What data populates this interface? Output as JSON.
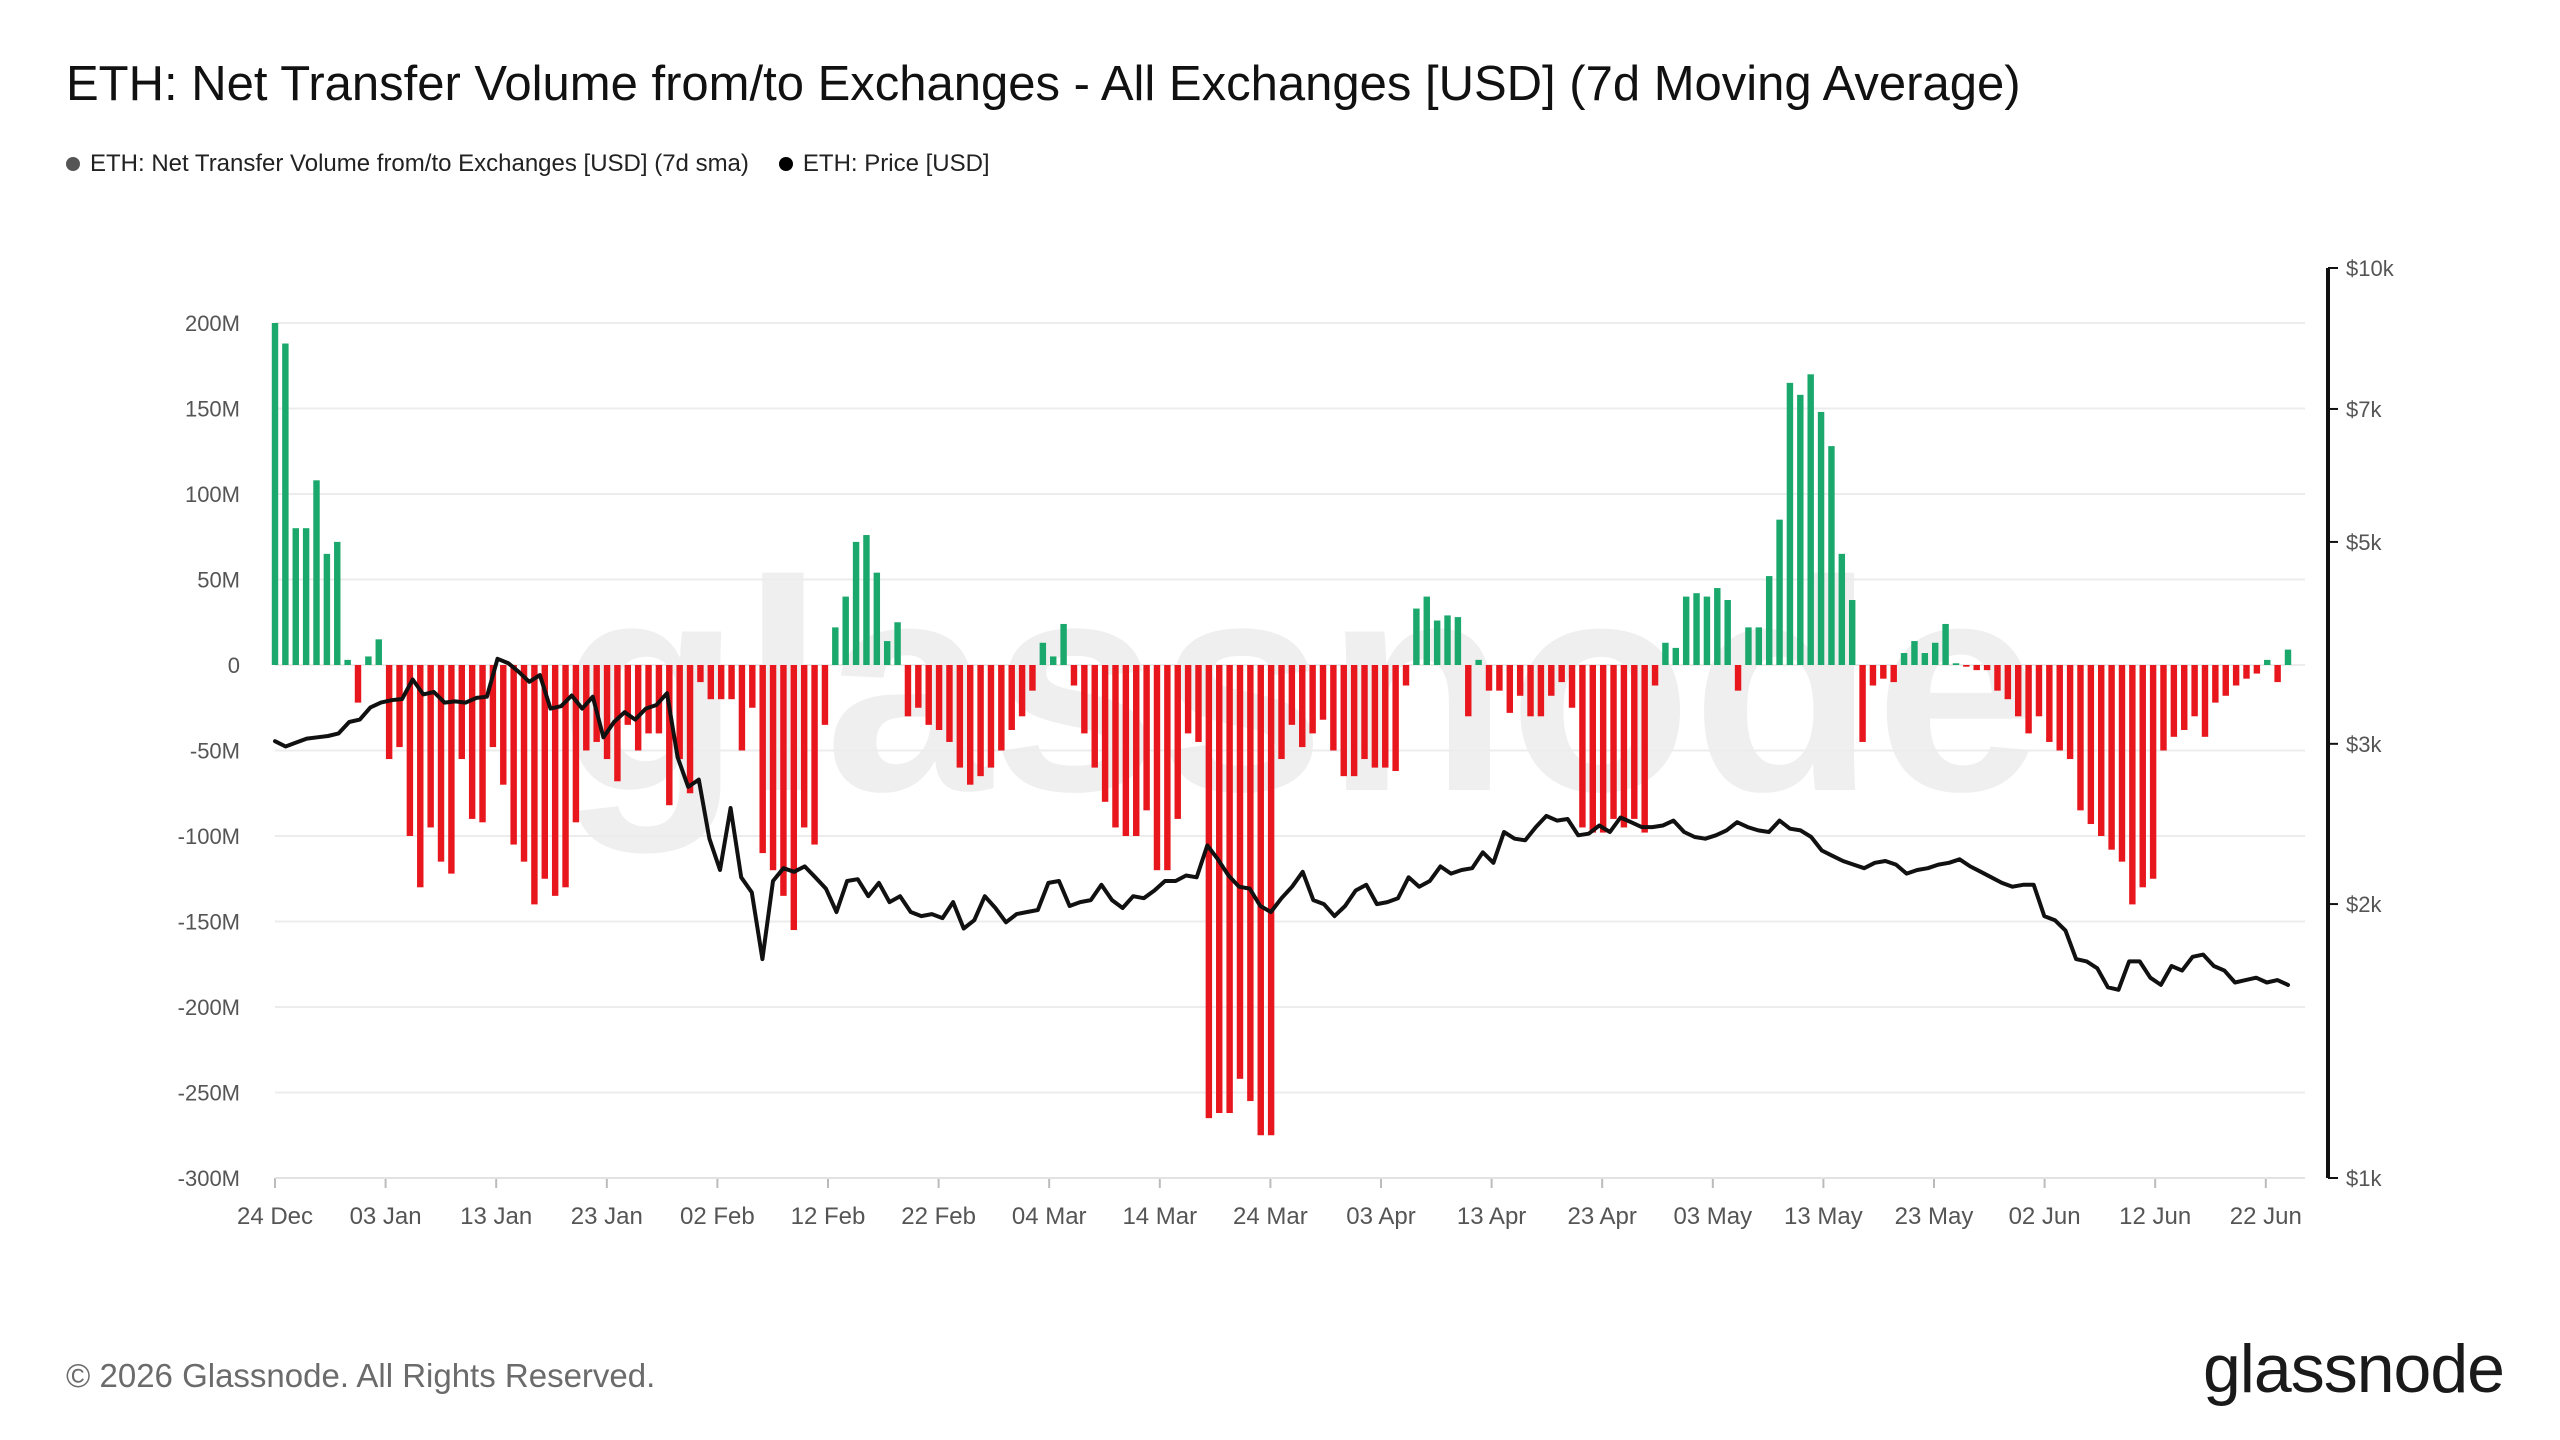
{
  "header": {
    "title": "ETH: Net Transfer Volume from/to Exchanges - All Exchanges [USD] (7d Moving Average)"
  },
  "legend": {
    "items": [
      {
        "label": "ETH: Net Transfer Volume from/to Exchanges [USD] (7d sma)",
        "color": "#555555"
      },
      {
        "label": "ETH: Price [USD]",
        "color": "#000000"
      }
    ]
  },
  "watermark": "glassnode",
  "footer": {
    "copyright": "© 2026 Glassnode. All Rights Reserved.",
    "brand": "glassnode"
  },
  "colors": {
    "positive": "#1aa86c",
    "negative": "#e8161d",
    "price_line": "#111111",
    "grid": "#ececec"
  },
  "chart_data": {
    "type": "bar",
    "title": "ETH: Net Transfer Volume from/to Exchanges - All Exchanges [USD] (7d Moving Average)",
    "x_ticks": [
      "24 Dec",
      "03 Jan",
      "13 Jan",
      "23 Jan",
      "02 Feb",
      "12 Feb",
      "22 Feb",
      "04 Mar",
      "14 Mar",
      "24 Mar",
      "03 Apr",
      "13 Apr",
      "23 Apr",
      "03 May",
      "13 May",
      "23 May",
      "02 Jun",
      "12 Jun",
      "22 Jun"
    ],
    "x_range": [
      "24 Dec",
      "24 Jun"
    ],
    "left_axis": {
      "ticks": [
        "200M",
        "150M",
        "100M",
        "50M",
        "0",
        "-50M",
        "-100M",
        "-150M",
        "-200M",
        "-250M",
        "-300M"
      ],
      "ylim": [
        -300,
        200
      ],
      "unit": "M USD"
    },
    "right_axis": {
      "ticks": [
        "$10k",
        "$7k",
        "$5k",
        "$3k",
        "$2k",
        "$1k"
      ],
      "scale": "log",
      "ylim": [
        1000,
        10000
      ]
    },
    "grid": true,
    "legend_position": "top-left",
    "series": [
      {
        "name": "ETH: Net Transfer Volume from/to Exchanges [USD] (7d sma)",
        "type": "bar",
        "unit": "M USD",
        "values": [
          200,
          188,
          80,
          80,
          108,
          65,
          72,
          3,
          -22,
          5,
          15,
          -55,
          -48,
          -100,
          -130,
          -95,
          -115,
          -122,
          -55,
          -90,
          -92,
          -48,
          -70,
          -105,
          -115,
          -140,
          -125,
          -135,
          -130,
          -92,
          -50,
          -45,
          -55,
          -68,
          -35,
          -50,
          -40,
          -40,
          -82,
          -55,
          -75,
          -10,
          -20,
          -20,
          -20,
          -50,
          -25,
          -110,
          -120,
          -135,
          -155,
          -95,
          -105,
          -35,
          22,
          40,
          72,
          76,
          54,
          14,
          25,
          -30,
          -25,
          -35,
          -38,
          -45,
          -60,
          -70,
          -65,
          -60,
          -50,
          -38,
          -30,
          -15,
          13,
          5,
          24,
          -12,
          -40,
          -60,
          -80,
          -95,
          -100,
          -100,
          -85,
          -120,
          -120,
          -90,
          -40,
          -45,
          -265,
          -262,
          -262,
          -242,
          -255,
          -275,
          -275,
          -55,
          -35,
          -48,
          -40,
          -32,
          -50,
          -65,
          -65,
          -55,
          -60,
          -60,
          -62,
          -12,
          33,
          40,
          26,
          29,
          28,
          -30,
          3,
          -15,
          -15,
          -28,
          -18,
          -30,
          -30,
          -18,
          -10,
          -25,
          -95,
          -98,
          -98,
          -90,
          -95,
          -90,
          -98,
          -12,
          13,
          10,
          40,
          42,
          40,
          45,
          38,
          -15,
          22,
          22,
          52,
          85,
          165,
          158,
          170,
          148,
          128,
          65,
          38,
          -45,
          -12,
          -8,
          -10,
          7,
          14,
          7,
          13,
          24,
          1,
          -1,
          -3,
          -3,
          -15,
          -20,
          -30,
          -40,
          -30,
          -45,
          -50,
          -55,
          -85,
          -93,
          -100,
          -108,
          -115,
          -140,
          -130,
          -125,
          -50,
          -42,
          -38,
          -30,
          -42,
          -22,
          -18,
          -12,
          -8,
          -5,
          3,
          -10,
          9
        ]
      },
      {
        "name": "ETH: Price [USD]",
        "type": "line",
        "unit": "USD",
        "values": [
          3020,
          2980,
          3010,
          3040,
          3050,
          3060,
          3080,
          3170,
          3190,
          3290,
          3330,
          3350,
          3360,
          3530,
          3400,
          3420,
          3330,
          3340,
          3330,
          3370,
          3380,
          3720,
          3680,
          3600,
          3510,
          3570,
          3280,
          3300,
          3390,
          3280,
          3380,
          3050,
          3170,
          3250,
          3190,
          3280,
          3310,
          3410,
          2900,
          2690,
          2740,
          2360,
          2180,
          2550,
          2140,
          2060,
          1740,
          2120,
          2190,
          2170,
          2200,
          2140,
          2080,
          1960,
          2120,
          2130,
          2040,
          2110,
          2010,
          2040,
          1960,
          1940,
          1950,
          1930,
          2010,
          1880,
          1920,
          2040,
          1980,
          1910,
          1950,
          1960,
          1970,
          2110,
          2120,
          1990,
          2010,
          2020,
          2100,
          2020,
          1980,
          2040,
          2030,
          2070,
          2120,
          2120,
          2150,
          2140,
          2320,
          2240,
          2150,
          2090,
          2080,
          1990,
          1960,
          2030,
          2090,
          2170,
          2020,
          2000,
          1940,
          1990,
          2070,
          2100,
          2000,
          2010,
          2030,
          2140,
          2090,
          2120,
          2200,
          2160,
          2180,
          2190,
          2280,
          2220,
          2400,
          2360,
          2350,
          2430,
          2500,
          2470,
          2480,
          2380,
          2390,
          2440,
          2400,
          2490,
          2460,
          2430,
          2430,
          2440,
          2470,
          2400,
          2370,
          2360,
          2380,
          2410,
          2460,
          2430,
          2410,
          2400,
          2470,
          2420,
          2410,
          2370,
          2290,
          2260,
          2230,
          2210,
          2190,
          2220,
          2230,
          2210,
          2160,
          2180,
          2190,
          2210,
          2220,
          2240,
          2200,
          2170,
          2140,
          2110,
          2090,
          2100,
          2100,
          1940,
          1920,
          1870,
          1740,
          1730,
          1700,
          1620,
          1610,
          1730,
          1730,
          1660,
          1630,
          1710,
          1690,
          1750,
          1760,
          1710,
          1690,
          1640,
          1650,
          1660,
          1640,
          1650,
          1630
        ]
      }
    ]
  }
}
